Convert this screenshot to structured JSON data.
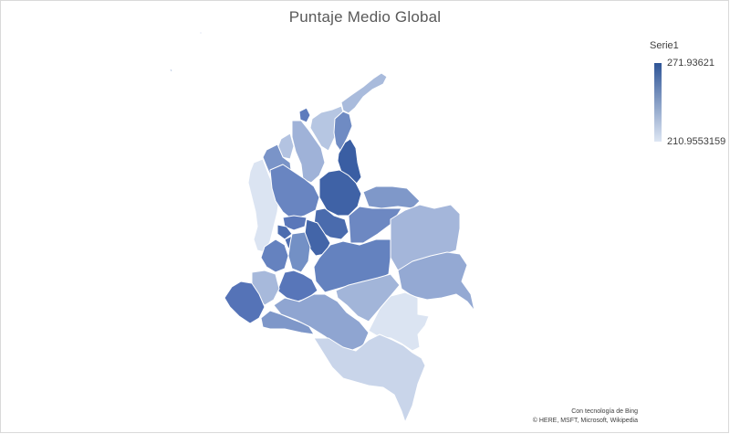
{
  "chart": {
    "title": "Puntaje Medio Global",
    "legend": {
      "title": "Serie1",
      "max_label": "271.93621",
      "min_label": "210.9553159",
      "max_color": "#2f5597",
      "min_color": "#dde6f3"
    }
  },
  "attribution": {
    "line1": "Con tecnología de Bing",
    "line2": "© HERE, MSFT, Microsoft, Wikipedia"
  },
  "chart_data": {
    "type": "heatmap",
    "title": "Puntaje Medio Global",
    "legend_title": "Serie1",
    "color_range": [
      210.9553159,
      271.93621
    ],
    "legend_position": "top-right"
  }
}
